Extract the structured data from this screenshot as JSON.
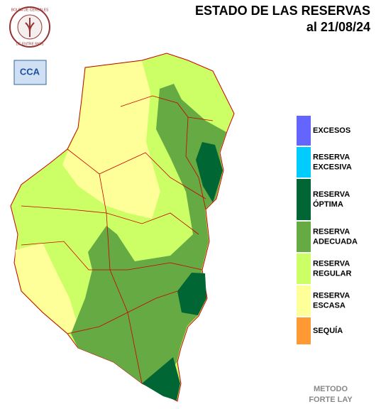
{
  "header": {
    "title": "ESTADO DE LAS RESERVAS",
    "date": "al 21/08/24"
  },
  "logos": {
    "bolsa_top": "BOLSA DE CEREALES",
    "bolsa_bottom": "DE ENTRE RIOS",
    "cca": "CCA"
  },
  "legend": [
    {
      "label": [
        "EXCESOS"
      ],
      "color": "#6464ff"
    },
    {
      "label": [
        "RESERVA",
        "EXCESIVA"
      ],
      "color": "#00ccff"
    },
    {
      "label": [
        "RESERVA",
        "ÓPTIMA"
      ],
      "color": "#006633"
    },
    {
      "label": [
        "RESERVA",
        "ADECUADA"
      ],
      "color": "#66aa44"
    },
    {
      "label": [
        "RESERVA",
        "REGULAR"
      ],
      "color": "#ccff66"
    },
    {
      "label": [
        "RESERVA",
        "ESCASA"
      ],
      "color": "#ffff99"
    },
    {
      "label": [
        "SEQUÍA"
      ],
      "color": "#ff9933"
    }
  ],
  "footer": [
    "METODO",
    "FORTE LAY"
  ]
}
